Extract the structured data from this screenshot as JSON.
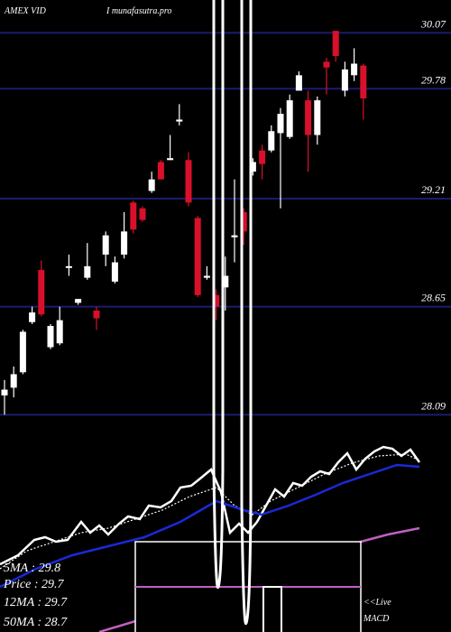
{
  "chart_data": [
    {
      "type": "candlestick",
      "title": "AMEX VID",
      "source": "I munafasutra.pro",
      "ylim": [
        28.04,
        30.24
      ],
      "yticks": [
        30.07,
        29.78,
        29.21,
        28.65,
        28.09
      ],
      "grid": true,
      "grid_color": "#1c1c6e",
      "up_color": "#ffffff",
      "down_color": "#d8102a",
      "open": [
        28.19,
        28.23,
        28.31,
        28.57,
        28.84,
        28.44,
        28.46,
        28.86,
        28.67,
        28.8,
        28.63,
        28.92,
        28.78,
        28.92,
        29.19,
        29.16,
        29.25,
        29.4,
        29.41,
        29.61,
        29.41,
        29.11,
        28.8,
        28.71,
        28.75,
        29.01,
        29.14,
        29.35,
        29.46,
        29.46,
        29.55,
        29.53,
        29.77,
        29.72,
        29.54,
        29.92,
        30.08,
        29.77,
        29.85,
        29.9
      ],
      "high": [
        28.27,
        28.34,
        28.53,
        28.65,
        28.89,
        28.56,
        28.65,
        28.92,
        28.69,
        28.98,
        28.65,
        29.04,
        28.91,
        29.14,
        29.2,
        29.17,
        29.35,
        29.41,
        29.54,
        29.7,
        29.45,
        29.12,
        28.86,
        28.74,
        28.91,
        29.31,
        29.16,
        29.42,
        29.49,
        29.59,
        29.68,
        29.75,
        29.87,
        29.77,
        29.74,
        29.94,
        30.08,
        29.92,
        29.99,
        29.91
      ],
      "low": [
        28.09,
        28.18,
        28.3,
        28.56,
        28.6,
        28.43,
        28.45,
        28.81,
        28.66,
        28.79,
        28.53,
        28.86,
        28.77,
        28.9,
        29.03,
        29.09,
        29.24,
        29.31,
        29.41,
        29.59,
        29.17,
        28.7,
        28.79,
        28.58,
        28.63,
        28.88,
        28.97,
        29.33,
        29.31,
        29.45,
        29.16,
        29.52,
        29.77,
        29.35,
        29.49,
        29.75,
        29.92,
        29.74,
        29.82,
        29.62
      ],
      "close": [
        28.22,
        28.3,
        28.52,
        28.62,
        28.61,
        28.55,
        28.58,
        28.86,
        28.69,
        28.86,
        28.59,
        29.02,
        28.88,
        29.04,
        29.05,
        29.1,
        29.31,
        29.31,
        29.42,
        29.62,
        29.19,
        28.71,
        28.81,
        28.65,
        28.81,
        29.02,
        29.04,
        29.4,
        29.39,
        29.56,
        29.65,
        29.72,
        29.85,
        29.54,
        29.72,
        29.89,
        29.95,
        29.88,
        29.91,
        29.73
      ]
    },
    {
      "type": "line",
      "ylim": [
        0,
        230
      ],
      "xlim": [
        0,
        500
      ],
      "series": [
        {
          "color": "#ffffff",
          "style": "solid",
          "x": [
            0,
            20,
            38,
            50,
            62,
            75,
            90,
            100,
            110,
            120,
            132,
            142,
            155,
            165,
            178,
            190,
            200,
            212,
            222,
            234,
            245,
            255,
            265,
            275,
            285,
            295,
            305,
            315,
            325,
            335,
            345,
            355,
            365,
            375,
            385,
            395,
            405,
            415,
            425,
            435,
            445,
            455,
            465
          ],
          "values": [
            75,
            85,
            102,
            105,
            100,
            102,
            122,
            110,
            118,
            108,
            120,
            128,
            125,
            140,
            138,
            145,
            160,
            162,
            170,
            180,
            155,
            110,
            120,
            110,
            122,
            140,
            158,
            150,
            165,
            162,
            172,
            178,
            175,
            188,
            198,
            180,
            192,
            200,
            205,
            203,
            195,
            202,
            188
          ]
        },
        {
          "color": "#ffffff",
          "style": "dotted",
          "x": [
            0,
            30,
            60,
            90,
            120,
            150,
            180,
            210,
            240,
            260,
            280,
            300,
            330,
            360,
            390,
            420,
            450,
            465
          ],
          "values": [
            70,
            90,
            100,
            110,
            115,
            125,
            135,
            150,
            160,
            140,
            130,
            145,
            160,
            175,
            187,
            195,
            197,
            190
          ]
        },
        {
          "color": "#1a2ad8",
          "style": "solid",
          "x": [
            0,
            40,
            80,
            120,
            160,
            200,
            240,
            270,
            290,
            320,
            350,
            380,
            410,
            440,
            465
          ],
          "values": [
            50,
            70,
            85,
            95,
            105,
            122,
            145,
            135,
            130,
            140,
            152,
            165,
            175,
            185,
            183
          ]
        },
        {
          "color": "#c060c0",
          "style": "solid",
          "x": [
            110,
            150,
            400,
            430,
            465
          ],
          "values": [
            0,
            12,
            100,
            108,
            115
          ]
        }
      ],
      "labels": [
        "5MA : 29.8",
        "Price : 29.7",
        "12MA : 29.7",
        "50MA : 28.7"
      ],
      "link_text": [
        "<<Live",
        "MACD"
      ]
    }
  ]
}
